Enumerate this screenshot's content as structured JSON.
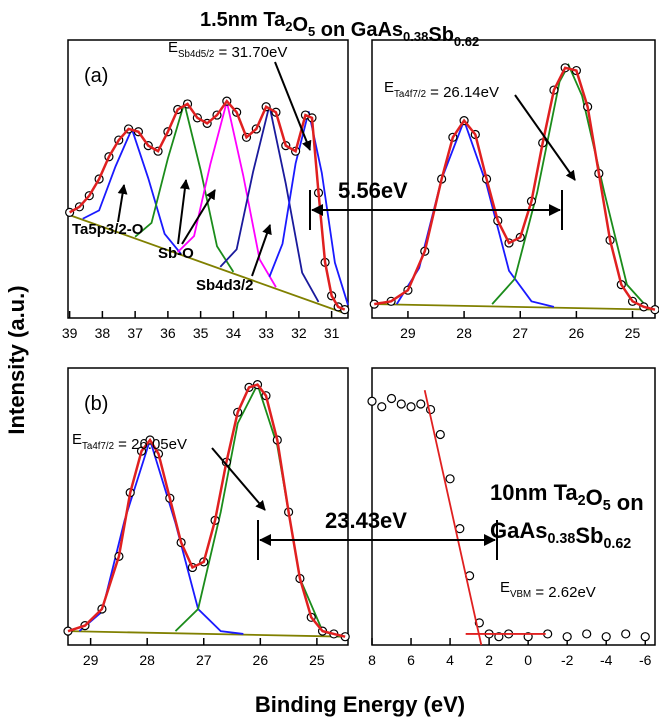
{
  "figure": {
    "title": [
      "1.5nm Ta",
      {
        "sub": "2"
      },
      "O",
      {
        "sub": "5"
      },
      " on GaAs",
      {
        "sub": "0.38"
      },
      "Sb",
      {
        "sub": "0.62"
      }
    ],
    "y_label": "Intensity (a.u.)",
    "x_label": "Binding Energy (eV)"
  },
  "chart_data": [
    {
      "type": "line",
      "panel_label": "(a)",
      "xlim": [
        39.05,
        30.5
      ],
      "xticks": [
        39,
        38,
        37,
        36,
        35,
        34,
        33,
        32,
        31
      ],
      "ylim": [
        0,
        100
      ],
      "annotations": [
        [
          "E",
          {
            "sub": "Sb4d5/2"
          },
          " = 31.70eV"
        ],
        [
          "5.56eV"
        ],
        [
          "Ta5p3/2-O"
        ],
        [
          "Sb-O"
        ],
        [
          "Sb4d3/2"
        ]
      ],
      "series": [
        {
          "color": "#808000",
          "line": true,
          "markers": false,
          "x": [
            39,
            30.6
          ],
          "values": [
            37,
            1.7
          ]
        },
        {
          "color": "#1a1aff",
          "line": true,
          "markers": false,
          "x": [
            38.6,
            38.1,
            37.6,
            37.1,
            36.6,
            36.1,
            35.6
          ],
          "values": [
            35.7,
            38.7,
            54.5,
            68,
            50.3,
            30.3,
            23.1
          ]
        },
        {
          "color": "#1b8c1b",
          "line": true,
          "markers": false,
          "x": [
            37,
            36.5,
            36,
            35.5,
            35,
            34.5,
            34
          ],
          "values": [
            29.2,
            34.2,
            57.4,
            77.3,
            53.2,
            25.8,
            16.6
          ]
        },
        {
          "color": "#ff00ff",
          "line": true,
          "markers": false,
          "x": [
            35.7,
            35.2,
            34.7,
            34.2,
            33.7,
            33.2,
            32.7
          ],
          "values": [
            23.7,
            29.5,
            55.5,
            77.8,
            51.3,
            21.1,
            11.1
          ]
        },
        {
          "color": "#1a1a9c",
          "line": true,
          "markers": false,
          "x": [
            34.4,
            33.9,
            33.4,
            32.9,
            32.4,
            31.9,
            31.4
          ],
          "values": [
            18.4,
            24.7,
            52.5,
            76.4,
            48.3,
            16.3,
            5.8
          ]
        },
        {
          "color": "#1a1aff",
          "line": true,
          "markers": false,
          "x": [
            32.9,
            32.5,
            32.1,
            31.7,
            31.3,
            30.9,
            30.5
          ],
          "values": [
            14.8,
            26.7,
            55.6,
            74.3,
            52.2,
            19.9,
            4.7
          ]
        },
        {
          "color": "#e02020",
          "line": true,
          "markers": true,
          "x": [
            39,
            38.7,
            38.4,
            38.1,
            37.8,
            37.5,
            37.2,
            36.9,
            36.6,
            36.3,
            36,
            35.7,
            35.4,
            35.1,
            34.8,
            34.5,
            34.2,
            33.9,
            33.6,
            33.3,
            33,
            32.7,
            32.4,
            32.1,
            31.8,
            31.6,
            31.4,
            31.2,
            31,
            30.8,
            30.6
          ],
          "values": [
            38,
            40,
            44,
            50,
            58,
            64,
            68,
            67,
            62,
            60,
            67,
            75,
            77,
            72,
            70,
            73,
            78,
            74,
            65,
            68,
            76,
            74,
            62,
            60,
            73,
            72,
            45,
            20,
            8,
            4,
            3
          ]
        }
      ]
    },
    {
      "type": "line",
      "xlim": [
        29.64,
        24.6
      ],
      "xticks": [
        29,
        28,
        27,
        26,
        25
      ],
      "ylim": [
        0,
        100
      ],
      "annotations": [
        [
          "E",
          {
            "sub": "Ta4f7/2"
          },
          " = 26.14eV"
        ]
      ],
      "series": [
        {
          "color": "#808000",
          "line": true,
          "markers": false,
          "x": [
            29.6,
            24.6
          ],
          "values": [
            5,
            3
          ]
        },
        {
          "color": "#1a1aff",
          "line": true,
          "markers": false,
          "x": [
            29.2,
            28.8,
            28.4,
            28,
            27.6,
            27.2,
            26.8,
            26.4
          ],
          "values": [
            5,
            18,
            50,
            71,
            48,
            17,
            6,
            4
          ]
        },
        {
          "color": "#1b8c1b",
          "line": true,
          "markers": false,
          "x": [
            27.5,
            27.1,
            26.7,
            26.3,
            26.14,
            25.9,
            25.5,
            25.1,
            24.7
          ],
          "values": [
            5,
            14,
            45,
            85,
            91,
            80,
            45,
            12,
            3
          ]
        },
        {
          "color": "#e02020",
          "line": true,
          "markers": true,
          "x": [
            29.6,
            29.3,
            29,
            28.7,
            28.4,
            28.2,
            28,
            27.8,
            27.6,
            27.4,
            27.2,
            27,
            26.8,
            26.6,
            26.4,
            26.2,
            26,
            25.8,
            25.6,
            25.4,
            25.2,
            25,
            24.8,
            24.6
          ],
          "values": [
            5,
            6,
            10,
            24,
            50,
            65,
            71,
            66,
            50,
            35,
            27,
            29,
            42,
            63,
            82,
            90,
            89,
            76,
            52,
            28,
            12,
            6,
            4,
            3
          ]
        }
      ]
    },
    {
      "type": "line",
      "panel_label": "(b)",
      "xlim": [
        29.4,
        24.45
      ],
      "xticks": [
        29,
        28,
        27,
        26,
        25
      ],
      "ylim": [
        0,
        100
      ],
      "annotations": [
        [
          "E",
          {
            "sub": "Ta4f7/2"
          },
          " = 26.05eV"
        ],
        [
          "23.43eV"
        ]
      ],
      "series": [
        {
          "color": "#808000",
          "line": true,
          "markers": false,
          "x": [
            29.4,
            24.5
          ],
          "values": [
            5,
            3
          ]
        },
        {
          "color": "#1a1aff",
          "line": true,
          "markers": false,
          "x": [
            29.2,
            28.8,
            28.4,
            27.95,
            27.5,
            27.1,
            26.7,
            26.3
          ],
          "values": [
            5,
            12,
            45,
            74,
            44,
            13,
            5,
            4
          ]
        },
        {
          "color": "#1b8c1b",
          "line": true,
          "markers": false,
          "x": [
            27.5,
            27.1,
            26.7,
            26.4,
            26.05,
            25.7,
            25.3,
            24.9,
            24.6
          ],
          "values": [
            5,
            13,
            48,
            80,
            94,
            72,
            24,
            5,
            3
          ]
        },
        {
          "color": "#e02020",
          "line": true,
          "markers": true,
          "x": [
            29.4,
            29.1,
            28.8,
            28.5,
            28.3,
            28.1,
            27.95,
            27.8,
            27.6,
            27.4,
            27.2,
            27,
            26.8,
            26.6,
            26.4,
            26.2,
            26.05,
            25.9,
            25.7,
            25.5,
            25.3,
            25.1,
            24.9,
            24.7,
            24.5
          ],
          "values": [
            5,
            7,
            13,
            32,
            55,
            70,
            74,
            69,
            53,
            37,
            28,
            30,
            45,
            66,
            84,
            93,
            94,
            90,
            74,
            48,
            24,
            10,
            5,
            4,
            3
          ]
        }
      ]
    },
    {
      "type": "line",
      "xlim": [
        8,
        -6.5
      ],
      "xticks": [
        8,
        6,
        4,
        2,
        0,
        -2,
        -4,
        -6
      ],
      "ylim": [
        0,
        100
      ],
      "annotations": [
        [
          "10nm Ta",
          {
            "sub": "2"
          },
          "O",
          {
            "sub": "5"
          },
          " on"
        ],
        [
          "GaAs",
          {
            "sub": "0.38"
          },
          "Sb",
          {
            "sub": "0.62"
          }
        ],
        [
          "E",
          {
            "sub": "VBM"
          },
          " = 2.62eV"
        ]
      ],
      "series": [
        {
          "color": "#000000",
          "line": false,
          "markers": true,
          "x": [
            8,
            7.5,
            7,
            6.5,
            6,
            5.5,
            5,
            4.5,
            4,
            3.5,
            3,
            2.5,
            2,
            1.5,
            1,
            0,
            -1,
            -2,
            -3,
            -4,
            -5,
            -6
          ],
          "values": [
            88,
            86,
            89,
            87,
            86,
            87,
            85,
            76,
            60,
            42,
            25,
            8,
            4,
            3,
            4,
            3,
            4,
            3,
            4,
            3,
            4,
            3
          ]
        },
        {
          "color": "#e02020",
          "line": true,
          "markers": false,
          "x": [
            5.3,
            2.4
          ],
          "values": [
            92,
            0
          ]
        },
        {
          "color": "#e02020",
          "line": true,
          "markers": false,
          "x": [
            3.2,
            -0.9
          ],
          "values": [
            4,
            4
          ]
        }
      ]
    }
  ]
}
